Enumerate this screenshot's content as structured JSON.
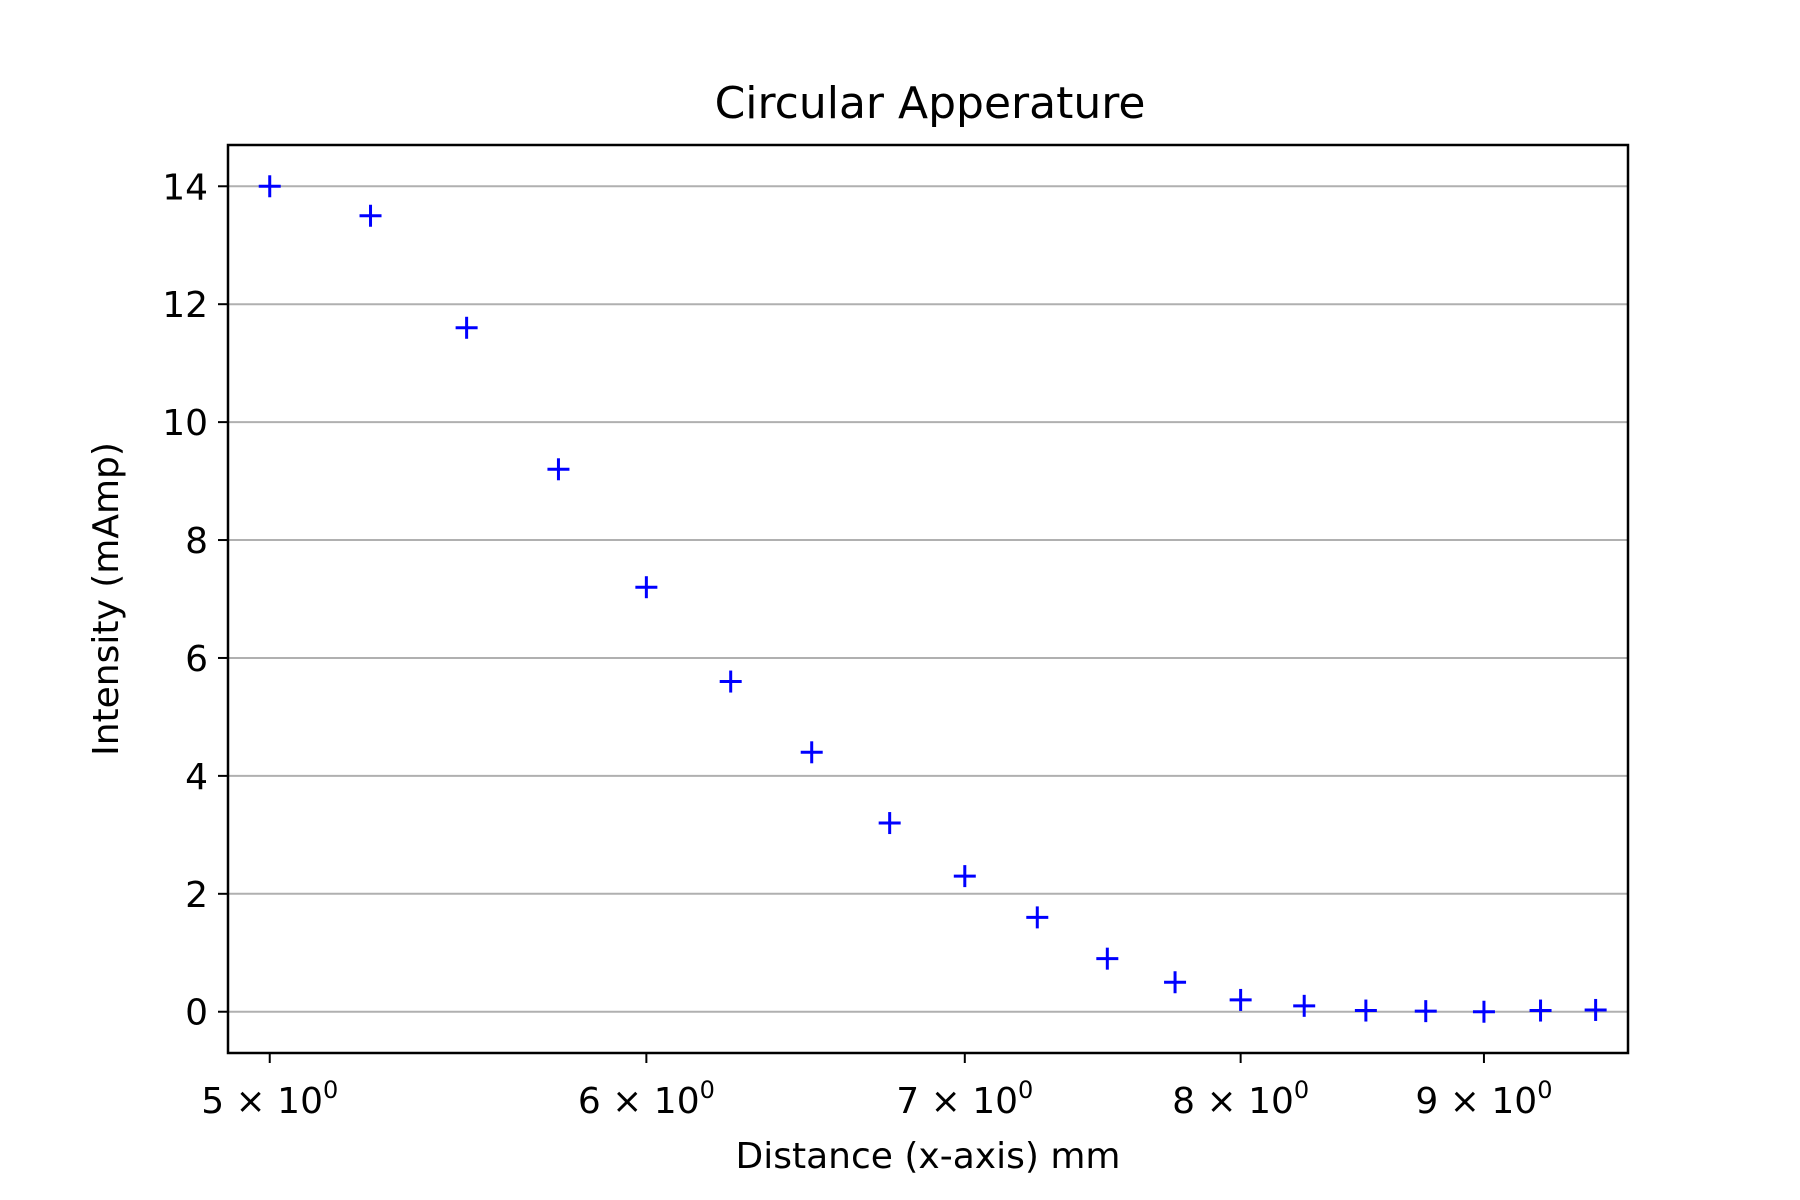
{
  "chart_data": {
    "type": "scatter",
    "title": "Circular Apperature",
    "xlabel": "Distance (x-axis) mm",
    "ylabel": "Intensity (mAmp)",
    "x_scale": "log",
    "xlim": [
      4.9,
      9.65
    ],
    "ylim": [
      -0.7,
      14.7
    ],
    "grid": "y",
    "marker": "+",
    "color": "#0000ff",
    "x_ticks": [
      {
        "value": 5,
        "mantissa": "5",
        "base": "10",
        "exponent": "0"
      },
      {
        "value": 6,
        "mantissa": "6",
        "base": "10",
        "exponent": "0"
      },
      {
        "value": 7,
        "mantissa": "7",
        "base": "10",
        "exponent": "0"
      },
      {
        "value": 8,
        "mantissa": "8",
        "base": "10",
        "exponent": "0"
      },
      {
        "value": 9,
        "mantissa": "9",
        "base": "10",
        "exponent": "0"
      }
    ],
    "y_ticks": [
      0,
      2,
      4,
      6,
      8,
      10,
      12,
      14
    ],
    "series": [
      {
        "name": "Intensity",
        "x": [
          5.0,
          5.25,
          5.5,
          5.75,
          6.0,
          6.25,
          6.5,
          6.75,
          7.0,
          7.25,
          7.5,
          7.75,
          8.0,
          8.25,
          8.5,
          8.75,
          9.0,
          9.25,
          9.5
        ],
        "y": [
          14.0,
          13.5,
          11.6,
          9.2,
          7.2,
          5.6,
          4.4,
          3.2,
          2.3,
          1.6,
          0.9,
          0.5,
          0.2,
          0.1,
          0.02,
          0.01,
          0.0,
          0.02,
          0.03
        ]
      }
    ]
  }
}
